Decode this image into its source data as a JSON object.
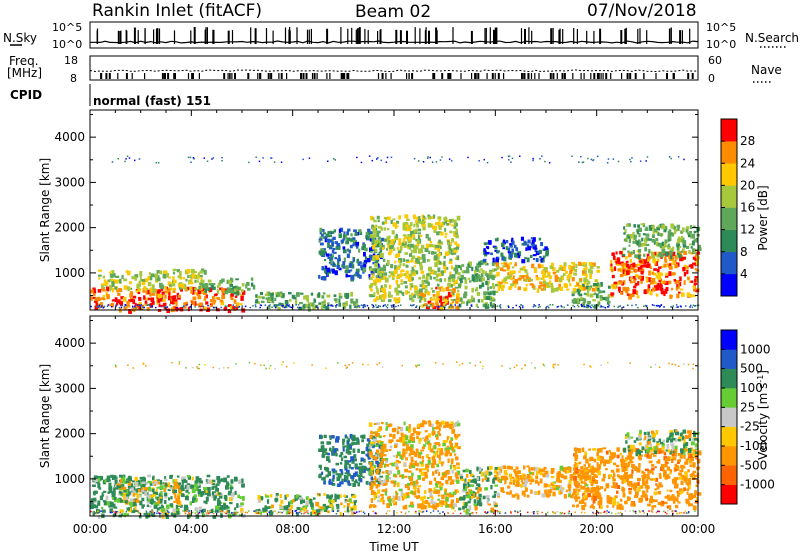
{
  "header": {
    "station": "Rankin Inlet (fitACF)",
    "beam": "Beam 02",
    "date": "07/Nov/2018"
  },
  "strip_labels": {
    "nsky": "N.Sky",
    "freq_line1": "Freq.",
    "freq_line2": "[MHz]",
    "cpid": "CPID",
    "nsearch": "N.Search",
    "nave": "Nave",
    "mode": "normal (fast) 151"
  },
  "strip_ticks": {
    "noise_left": [
      "10^5",
      "10^0"
    ],
    "noise_right": [
      "10^5",
      "10^0"
    ],
    "freq_left": [
      "18",
      "8"
    ],
    "nave_right": [
      "60",
      "0"
    ]
  },
  "chart_data": [
    {
      "type": "heatmap",
      "panel": "power",
      "xlabel": "",
      "ylabel": "Slant Range [km]",
      "xlim": [
        "00:00",
        "24:00"
      ],
      "ylim": [
        180,
        4600
      ],
      "x_ticks": [
        "00:00",
        "04:00",
        "08:00",
        "12:00",
        "16:00",
        "20:00",
        "00:00"
      ],
      "y_ticks": [
        1000,
        2000,
        3000,
        4000
      ],
      "colorbar": {
        "label": "Power [dB]",
        "range": [
          0,
          32
        ],
        "ticks": [
          4,
          8,
          12,
          16,
          20,
          24,
          28
        ],
        "colors": [
          "#0000ff",
          "#1f5ac8",
          "#2e8b57",
          "#5fa85a",
          "#a8c83c",
          "#ffc800",
          "#ff8c00",
          "#ff0000"
        ]
      },
      "regions": [
        {
          "t0": 0.0,
          "t1": 6.0,
          "r0": 200,
          "r1": 700,
          "value": 28
        },
        {
          "t0": 0.3,
          "t1": 4.5,
          "r0": 650,
          "r1": 1100,
          "value": 18
        },
        {
          "t0": 4.5,
          "t1": 6.5,
          "r0": 600,
          "r1": 900,
          "value": 14
        },
        {
          "t0": 6.5,
          "t1": 10.5,
          "r0": 250,
          "r1": 600,
          "value": 14
        },
        {
          "t0": 9.0,
          "t1": 11.5,
          "r0": 900,
          "r1": 2000,
          "value": 8
        },
        {
          "t0": 11.0,
          "t1": 14.5,
          "r0": 400,
          "r1": 2300,
          "value": 18
        },
        {
          "t0": 13.0,
          "t1": 14.5,
          "r0": 250,
          "r1": 700,
          "value": 26
        },
        {
          "t0": 14.5,
          "t1": 16.0,
          "r0": 300,
          "r1": 1300,
          "value": 14
        },
        {
          "t0": 15.5,
          "t1": 18.0,
          "r0": 1300,
          "r1": 1800,
          "value": 6
        },
        {
          "t0": 16.0,
          "t1": 20.0,
          "r0": 650,
          "r1": 1250,
          "value": 22
        },
        {
          "t0": 19.0,
          "t1": 20.5,
          "r0": 300,
          "r1": 800,
          "value": 14
        },
        {
          "t0": 20.5,
          "t1": 24.0,
          "r0": 500,
          "r1": 1500,
          "value": 27
        },
        {
          "t0": 21.0,
          "t1": 24.0,
          "r0": 1400,
          "r1": 2100,
          "value": 14
        },
        {
          "t0": 0.8,
          "t1": 23.8,
          "r0": 3450,
          "r1": 3600,
          "value": 6
        }
      ]
    },
    {
      "type": "heatmap",
      "panel": "velocity",
      "xlabel": "Time UT",
      "ylabel": "Slant Range [km]",
      "xlim": [
        "00:00",
        "24:00"
      ],
      "ylim": [
        180,
        4600
      ],
      "x_ticks": [
        "00:00",
        "04:00",
        "08:00",
        "12:00",
        "16:00",
        "20:00",
        "00:00"
      ],
      "y_ticks": [
        1000,
        2000,
        3000,
        4000
      ],
      "colorbar": {
        "label": "Velocity [m s^-1]",
        "range": [
          -1500,
          1500
        ],
        "ticks": [
          1000,
          500,
          100,
          25,
          -25,
          -100,
          -500,
          -1000
        ],
        "colors": [
          "#ff0000",
          "#ff6400",
          "#ff9600",
          "#ffc800",
          "#c8c8c8",
          "#66cc33",
          "#2e8b57",
          "#1f5ac8",
          "#0000ff"
        ]
      },
      "regions": [
        {
          "t0": 0.0,
          "t1": 6.0,
          "r0": 200,
          "r1": 1100,
          "value": 200
        },
        {
          "t0": 1.0,
          "t1": 3.5,
          "r0": 500,
          "r1": 1000,
          "value": 0
        },
        {
          "t0": 6.5,
          "t1": 10.5,
          "r0": 250,
          "r1": 700,
          "value": 100
        },
        {
          "t0": 9.0,
          "t1": 11.5,
          "r0": 900,
          "r1": 2000,
          "value": 400
        },
        {
          "t0": 11.0,
          "t1": 14.5,
          "r0": 400,
          "r1": 2300,
          "value": -150
        },
        {
          "t0": 14.5,
          "t1": 16.0,
          "r0": 300,
          "r1": 1300,
          "value": 80
        },
        {
          "t0": 16.0,
          "t1": 20.0,
          "r0": 650,
          "r1": 1300,
          "value": -200
        },
        {
          "t0": 19.0,
          "t1": 24.0,
          "r0": 400,
          "r1": 1700,
          "value": -300
        },
        {
          "t0": 21.0,
          "t1": 24.0,
          "r0": 1600,
          "r1": 2100,
          "value": 100
        },
        {
          "t0": 0.8,
          "t1": 23.8,
          "r0": 3450,
          "r1": 3600,
          "value": -150
        }
      ]
    }
  ]
}
